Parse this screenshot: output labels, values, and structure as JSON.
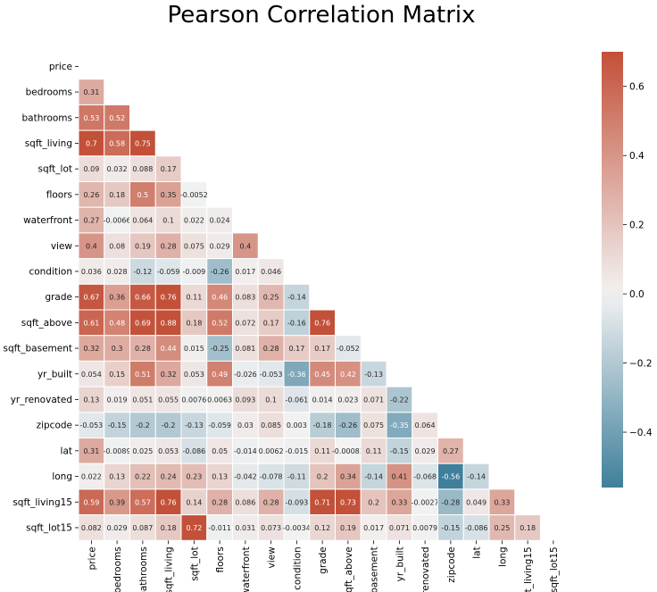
{
  "chart_data": {
    "type": "heatmap",
    "title": "Pearson Correlation Matrix",
    "variables": [
      "price",
      "bedrooms",
      "bathrooms",
      "sqft_living",
      "sqft_lot",
      "floors",
      "waterfront",
      "view",
      "condition",
      "grade",
      "sqft_above",
      "sqft_basement",
      "yr_built",
      "yr_renovated",
      "zipcode",
      "lat",
      "long",
      "sqft_living15",
      "sqft_lot15"
    ],
    "mask": "upper-triangle-and-diagonal",
    "lower_triangle": [
      [],
      [
        0.31
      ],
      [
        0.53,
        0.52
      ],
      [
        0.7,
        0.58,
        0.75
      ],
      [
        0.09,
        0.032,
        0.088,
        0.17
      ],
      [
        0.26,
        0.18,
        0.5,
        0.35,
        -0.0052
      ],
      [
        0.27,
        -0.0066,
        0.064,
        0.1,
        0.022,
        0.024
      ],
      [
        0.4,
        0.08,
        0.19,
        0.28,
        0.075,
        0.029,
        0.4
      ],
      [
        0.036,
        0.028,
        -0.12,
        -0.059,
        -0.009,
        -0.26,
        0.017,
        0.046
      ],
      [
        0.67,
        0.36,
        0.66,
        0.76,
        0.11,
        0.46,
        0.083,
        0.25,
        -0.14
      ],
      [
        0.61,
        0.48,
        0.69,
        0.88,
        0.18,
        0.52,
        0.072,
        0.17,
        -0.16,
        0.76
      ],
      [
        0.32,
        0.3,
        0.28,
        0.44,
        0.015,
        -0.25,
        0.081,
        0.28,
        0.17,
        0.17,
        -0.052
      ],
      [
        0.054,
        0.15,
        0.51,
        0.32,
        0.053,
        0.49,
        -0.026,
        -0.053,
        -0.36,
        0.45,
        0.42,
        -0.13
      ],
      [
        0.13,
        0.019,
        0.051,
        0.055,
        0.0076,
        0.0063,
        0.093,
        0.1,
        -0.061,
        0.014,
        0.023,
        0.071,
        -0.22
      ],
      [
        -0.053,
        -0.15,
        -0.2,
        -0.2,
        -0.13,
        -0.059,
        0.03,
        0.085,
        0.003,
        -0.18,
        -0.26,
        0.075,
        -0.35,
        0.064
      ],
      [
        0.31,
        -0.0089,
        0.025,
        0.053,
        -0.086,
        0.05,
        -0.014,
        0.0062,
        -0.015,
        0.11,
        -0.00082,
        0.11,
        -0.15,
        0.029,
        0.27
      ],
      [
        0.022,
        0.13,
        0.22,
        0.24,
        0.23,
        0.13,
        -0.042,
        -0.078,
        -0.11,
        0.2,
        0.34,
        -0.14,
        0.41,
        -0.068,
        -0.56,
        -0.14
      ],
      [
        0.59,
        0.39,
        0.57,
        0.76,
        0.14,
        0.28,
        0.086,
        0.28,
        -0.093,
        0.71,
        0.73,
        0.2,
        0.33,
        -0.0027,
        -0.28,
        0.049,
        0.33
      ],
      [
        0.082,
        0.029,
        0.087,
        0.18,
        0.72,
        -0.011,
        0.031,
        0.073,
        -0.0034,
        0.12,
        0.19,
        0.017,
        0.071,
        0.0079,
        -0.15,
        -0.086,
        0.25,
        0.18
      ]
    ],
    "vmin": -0.56,
    "vmax": 0.7,
    "colormap": {
      "negative": "#3f7f9b",
      "center": "#f2f2f2",
      "positive": "#c35038"
    },
    "colorbar": {
      "ticks": [
        -0.4,
        -0.2,
        0.0,
        0.2,
        0.4,
        0.6
      ],
      "tick_labels": [
        "−0.4",
        "−0.2",
        "0.0",
        "0.2",
        "0.4",
        "0.6"
      ],
      "placement": "right"
    }
  }
}
